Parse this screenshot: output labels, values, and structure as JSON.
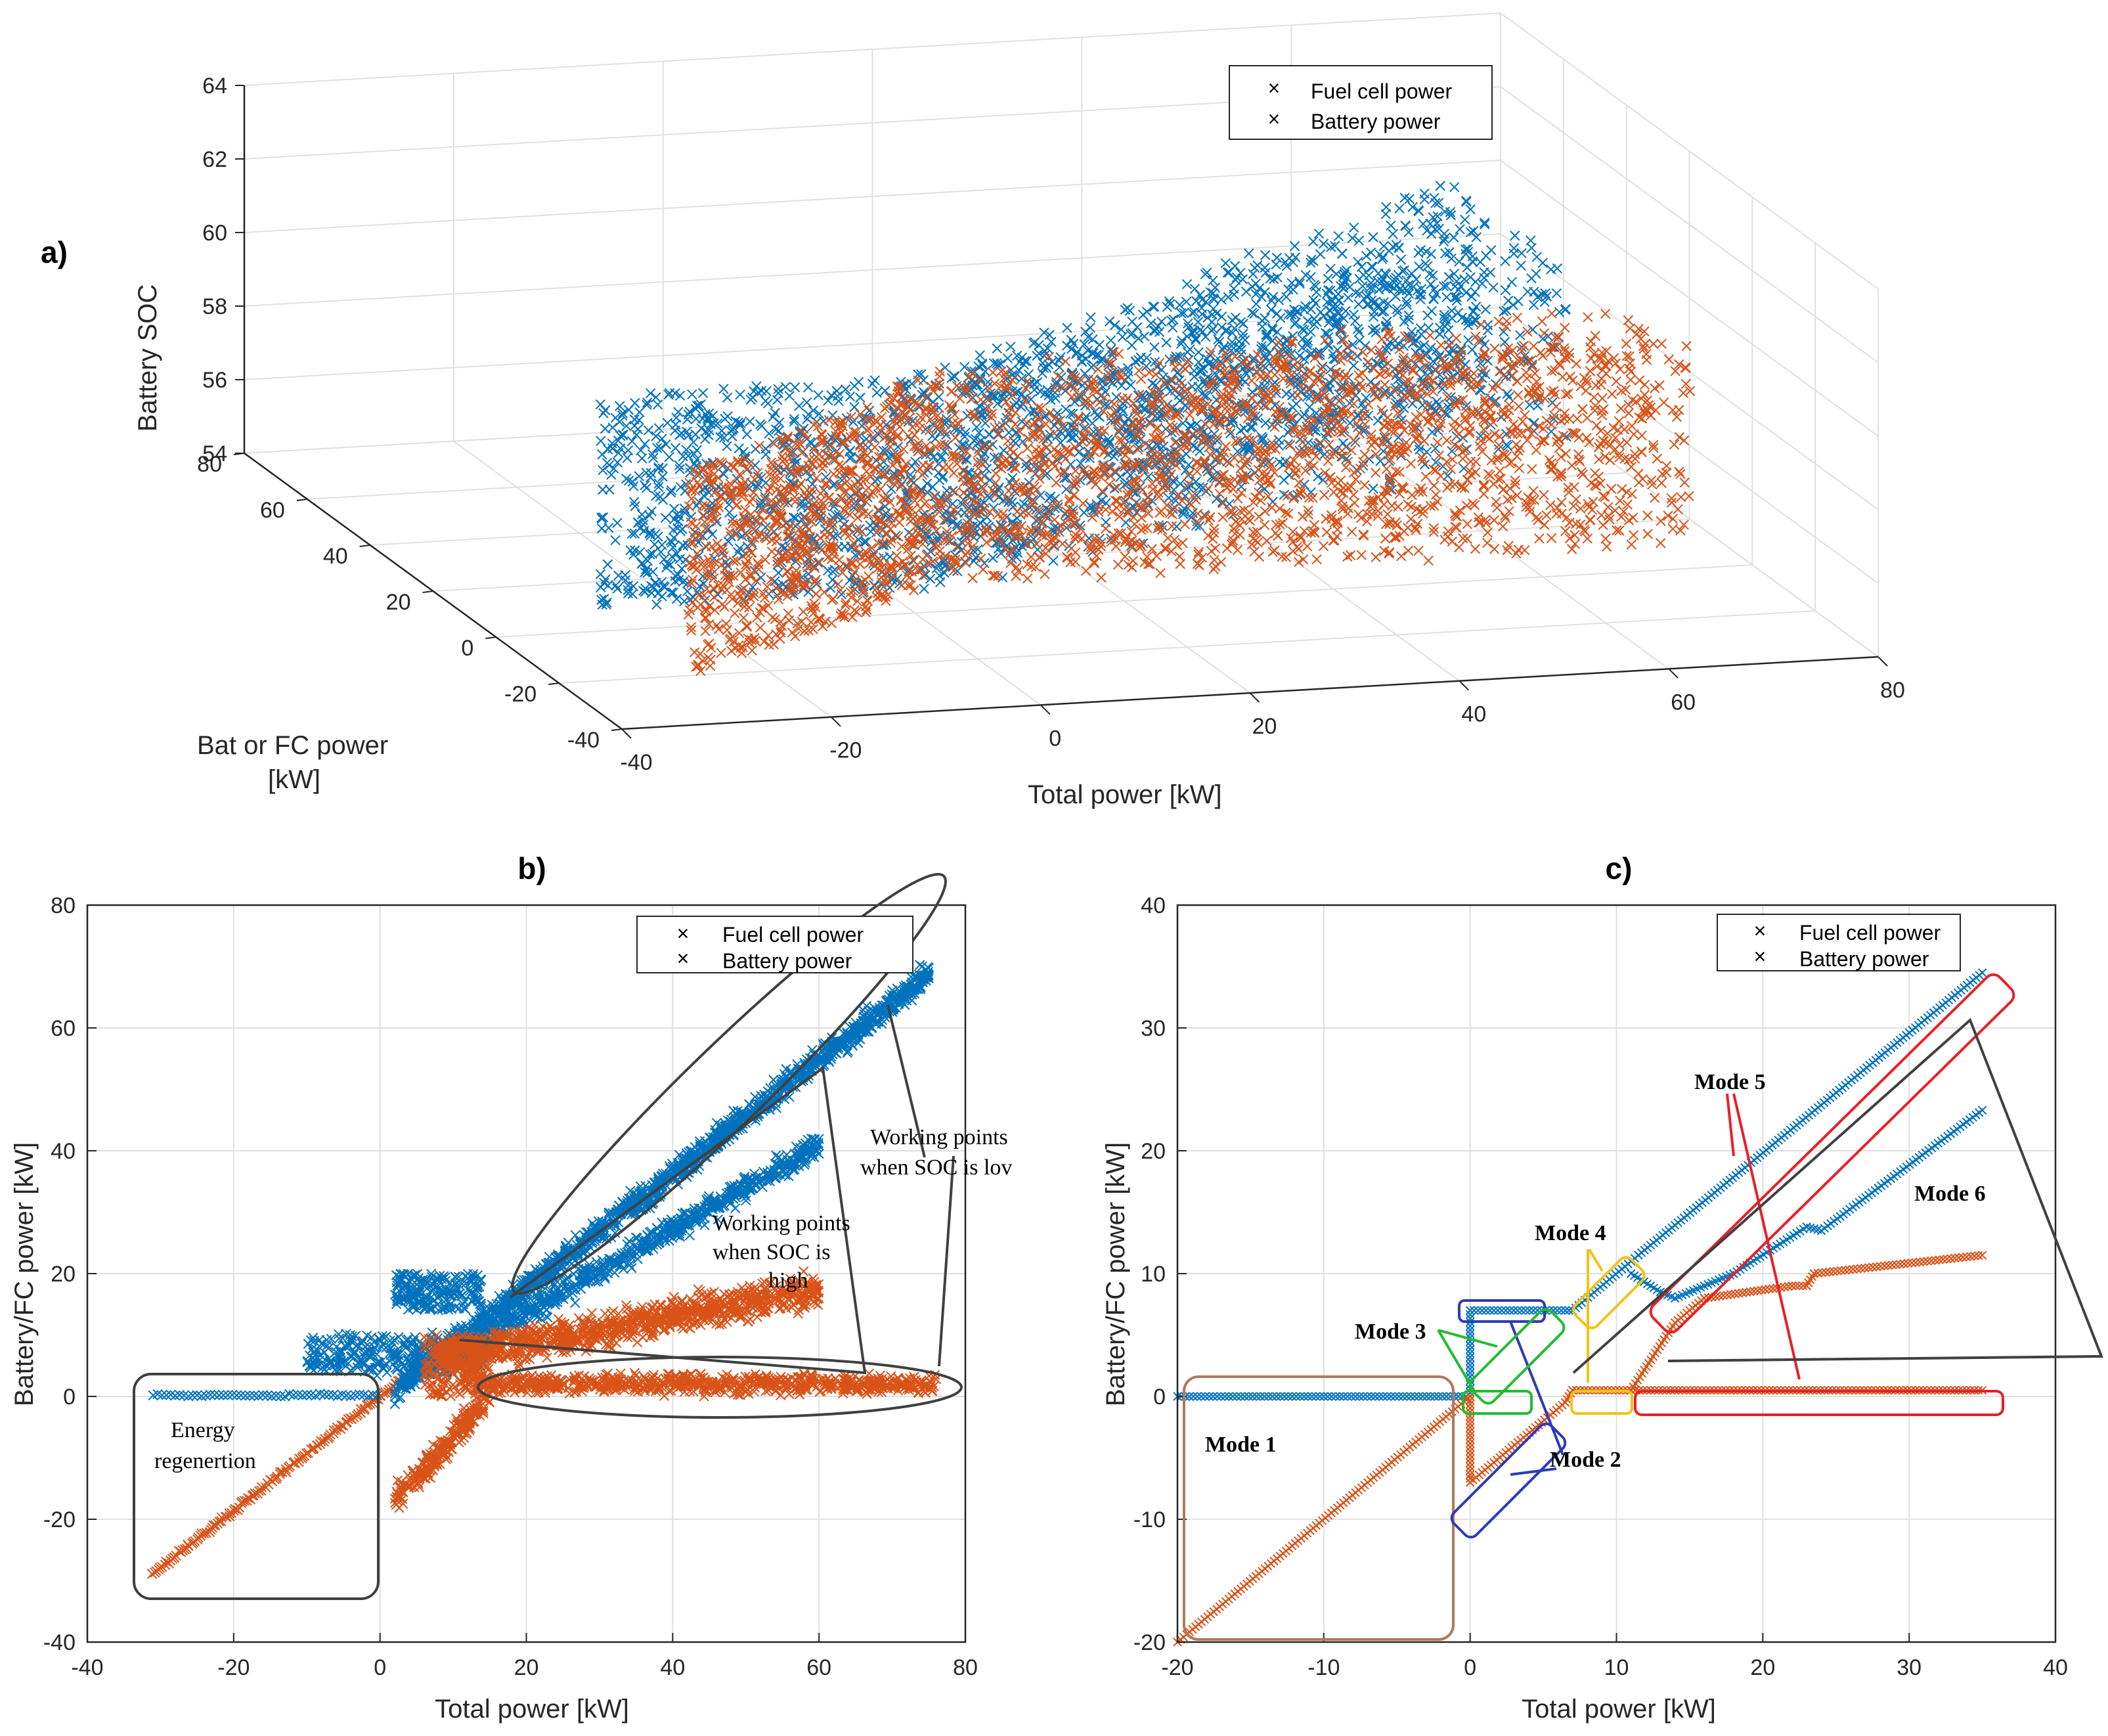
{
  "colors": {
    "fc": "#0072BD",
    "bat": "#D95319",
    "frame": "#404040"
  },
  "chart_data": [
    {
      "id": "a",
      "type": "scatter",
      "panel_label": "a)",
      "title": "",
      "xlabel": "Total power  [kW]",
      "ylabel_lines": [
        "Bat or FC power",
        "[kW]"
      ],
      "zlabel": "Battery SOC",
      "x_ticks": [
        "-40",
        "-20",
        "0",
        "20",
        "40",
        "60",
        "80"
      ],
      "y_ticks": [
        "-40",
        "-20",
        "0",
        "20",
        "40",
        "60",
        "80"
      ],
      "z_ticks": [
        "54",
        "56",
        "58",
        "60",
        "62",
        "64"
      ],
      "xlim": [
        -40,
        80
      ],
      "ylim": [
        -40,
        80
      ],
      "zlim": [
        54,
        64
      ],
      "legend": [
        "Fuel cell power",
        "Battery power"
      ],
      "legend_position": "top-right",
      "series_note": "3D scatter of fuel cell and battery power vs total power and SOC (approx. 54.5–60.5)"
    },
    {
      "id": "b",
      "type": "scatter",
      "panel_label": "b)",
      "xlabel": "Total power [kW]",
      "ylabel": "Battery/FC power [kW]",
      "x_ticks": [
        "-40",
        "-20",
        "0",
        "20",
        "40",
        "60",
        "80"
      ],
      "y_ticks": [
        "-40",
        "-20",
        "0",
        "20",
        "40",
        "60",
        "80"
      ],
      "xlim": [
        -40,
        80
      ],
      "ylim": [
        -40,
        80
      ],
      "legend": [
        "Fuel cell power",
        "Battery power"
      ],
      "legend_position": "top-right",
      "annotations": {
        "regen": [
          "Energy",
          "regenertion"
        ],
        "soc_high": [
          "Working points",
          "when SOC is",
          "high"
        ],
        "soc_low": [
          "Working points",
          "when SOC is lov"
        ]
      },
      "series": [
        {
          "name": "Fuel cell power",
          "trend": [
            [
              -31,
              0
            ],
            [
              0,
              0
            ],
            [
              0,
              5
            ],
            [
              10,
              10
            ],
            [
              40,
              38
            ],
            [
              60,
              52
            ],
            [
              75,
              73
            ]
          ]
        },
        {
          "name": "Battery power",
          "trend": [
            [
              -31,
              -31
            ],
            [
              0,
              0
            ],
            [
              10,
              5
            ],
            [
              40,
              5
            ],
            [
              60,
              10
            ],
            [
              75,
              2
            ]
          ]
        }
      ]
    },
    {
      "id": "c",
      "type": "scatter",
      "panel_label": "c)",
      "xlabel": "Total power [kW]",
      "ylabel": "Battery/FC power [kW]",
      "x_ticks": [
        "-20",
        "-10",
        "0",
        "10",
        "20",
        "30",
        "40"
      ],
      "y_ticks": [
        "-20",
        "-10",
        "0",
        "10",
        "20",
        "30",
        "40"
      ],
      "xlim": [
        -20,
        40
      ],
      "ylim": [
        -20,
        40
      ],
      "legend": [
        "Fuel cell power",
        "Battery power"
      ],
      "legend_position": "top-right",
      "modes": [
        "Mode 1",
        "Mode 2",
        "Mode 3",
        "Mode 4",
        "Mode 5",
        "Mode 6"
      ],
      "series": [
        {
          "name": "Fuel cell power",
          "points": [
            [
              -20,
              0
            ],
            [
              0,
              0
            ],
            [
              0,
              7
            ],
            [
              6.5,
              7
            ],
            [
              7,
              7
            ],
            [
              11,
              11
            ],
            [
              11.5,
              11.5
            ],
            [
              35,
              34.5
            ]
          ]
        },
        {
          "name": "Fuel cell power (mode 6)",
          "points": [
            [
              11,
              10
            ],
            [
              13,
              8.5
            ],
            [
              14,
              8
            ],
            [
              18,
              10
            ],
            [
              23,
              13.8
            ],
            [
              24,
              13.5
            ],
            [
              35,
              23.3
            ]
          ]
        },
        {
          "name": "Battery power",
          "points": [
            [
              -20,
              -20
            ],
            [
              0,
              0
            ],
            [
              0,
              -7
            ],
            [
              6.5,
              -0.5
            ],
            [
              7,
              0.5
            ],
            [
              11,
              0.5
            ],
            [
              35,
              0.5
            ]
          ]
        },
        {
          "name": "Battery power (mode 6)",
          "points": [
            [
              11,
              0.5
            ],
            [
              14,
              6
            ],
            [
              16,
              8
            ],
            [
              22,
              9
            ],
            [
              23,
              9
            ],
            [
              23.5,
              10
            ],
            [
              35,
              11.5
            ]
          ]
        }
      ]
    }
  ]
}
